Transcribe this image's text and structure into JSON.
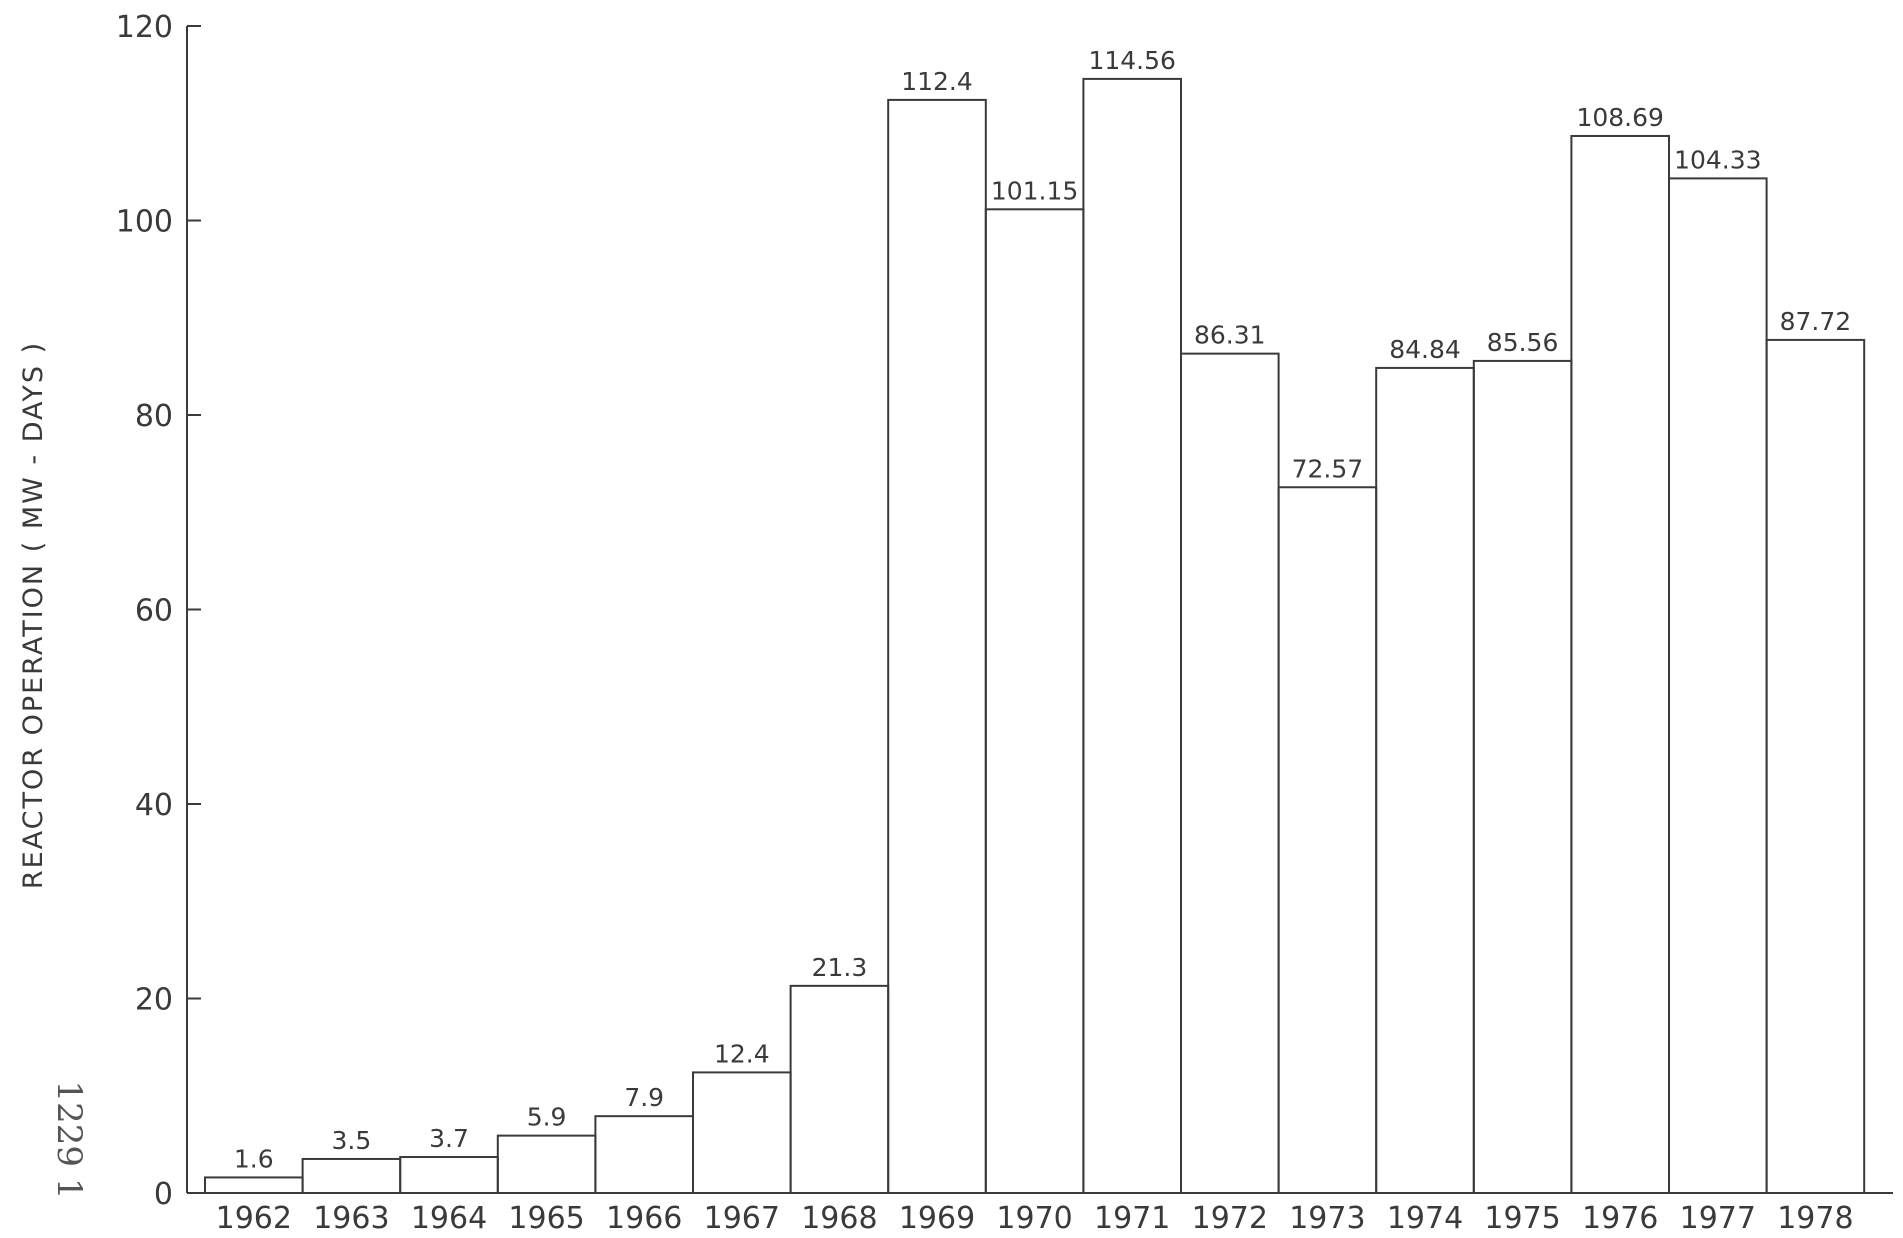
{
  "chart_data": {
    "type": "bar",
    "ylabel": "REACTOR OPERATION ( MW - DAYS )",
    "xlabel": "",
    "ylim": [
      0,
      120
    ],
    "yticks": [
      "0",
      "20",
      "40",
      "60",
      "80",
      "100",
      "120"
    ],
    "categories": [
      "1962",
      "1963",
      "1964",
      "1965",
      "1966",
      "1967",
      "1968",
      "1969",
      "1970",
      "1971",
      "1972",
      "1973",
      "1974",
      "1975",
      "1976",
      "1977",
      "1978"
    ],
    "values": [
      1.6,
      3.5,
      3.7,
      5.9,
      7.9,
      12.4,
      21.3,
      112.4,
      101.15,
      114.56,
      86.31,
      72.57,
      84.84,
      85.56,
      108.69,
      104.33,
      87.72
    ],
    "data_labels": [
      "1.6",
      "3.5",
      "3.7",
      "5.9",
      "7.9",
      "12.4",
      "21.3",
      "112.4",
      "101.15",
      "114.56",
      "86.31",
      "72.57",
      "84.84",
      "85.56",
      "108.69",
      "104.33",
      "87.72"
    ],
    "grid": false,
    "bar_style": "outline"
  },
  "margin_note": "1229 1",
  "colors": {
    "ink": "#3a3a3a",
    "background": "#ffffff"
  }
}
